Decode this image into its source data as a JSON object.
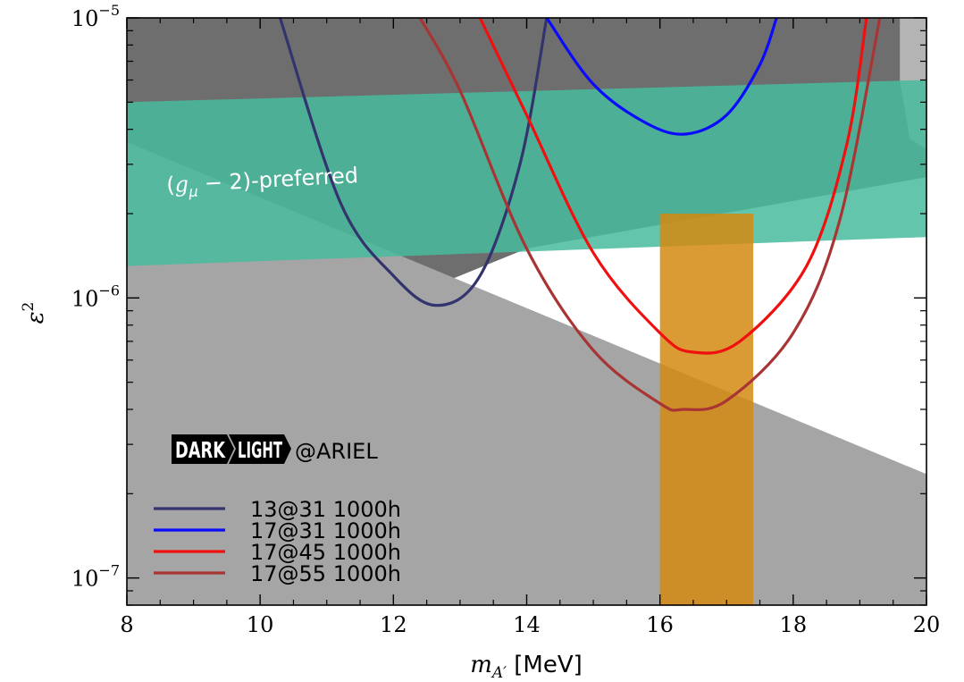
{
  "chart_data": {
    "type": "line",
    "xlabel": "m_{A'} [MeV]",
    "ylabel": "ε²",
    "xlim": [
      8,
      20
    ],
    "ylim": [
      8e-08,
      1e-05
    ],
    "yscale": "log",
    "x_ticks": [
      8,
      10,
      12,
      14,
      16,
      18,
      20
    ],
    "y_ticks": [
      {
        "value": 1e-07,
        "base": "10",
        "exp": "−7"
      },
      {
        "value": 1e-06,
        "base": "10",
        "exp": "−6"
      },
      {
        "value": 1e-05,
        "base": "10",
        "exp": "−5"
      }
    ],
    "regions": [
      {
        "name": "excluded-dark",
        "color": "#6e6e6e",
        "points": [
          [
            8,
            1e-05
          ],
          [
            19.6,
            1e-05
          ],
          [
            20,
            5e-06
          ],
          [
            20,
            2.7e-06
          ],
          [
            14,
            1.5e-06
          ],
          [
            12.4,
            1.05e-06
          ],
          [
            8,
            2.8e-06
          ]
        ]
      },
      {
        "name": "excluded-light",
        "color": "#a5a5a5",
        "points": [
          [
            8,
            3.6e-06
          ],
          [
            20,
            2.35e-07
          ],
          [
            20,
            8e-08
          ],
          [
            8,
            8e-08
          ]
        ]
      },
      {
        "name": "excluded-light-corner",
        "color": "#b4b4b4",
        "points": [
          [
            19.6,
            1e-05
          ],
          [
            20,
            1e-05
          ],
          [
            20,
            3.4e-06
          ],
          [
            19.75,
            3.7e-06
          ],
          [
            19.6,
            6e-06
          ]
        ]
      },
      {
        "name": "g-2-preferred",
        "color": "#48bc9d",
        "opacity": 0.85,
        "points": [
          [
            8,
            5e-06
          ],
          [
            20,
            6e-06
          ],
          [
            20,
            1.65e-06
          ],
          [
            8,
            1.3e-06
          ]
        ]
      },
      {
        "name": "x17-band",
        "color": "#d48a10",
        "opacity": 0.85,
        "points": [
          [
            16,
            2e-06
          ],
          [
            17.4,
            2e-06
          ],
          [
            17.4,
            8e-08
          ],
          [
            16,
            8e-08
          ]
        ]
      }
    ],
    "region_label": {
      "text_main": "g",
      "text_sub": "μ",
      "text_mid": " − 2)-preferred",
      "x": 8.6,
      "y": 2.38e-06,
      "rotation": -3
    },
    "series": [
      {
        "name": "13@31 1000h",
        "color": "#33346e",
        "x": [
          10.3,
          11.2,
          12.0,
          12.65,
          13.3,
          13.9,
          14.3
        ],
        "y": [
          1e-05,
          2.2e-06,
          1.2e-06,
          9.4e-07,
          1.2e-06,
          3e-06,
          1e-05
        ]
      },
      {
        "name": "17@31 1000h",
        "color": "#0a0aff",
        "x": [
          14.3,
          15.0,
          15.8,
          16.4,
          17.0,
          17.5,
          17.75
        ],
        "y": [
          1e-05,
          5.8e-06,
          4.2e-06,
          3.85e-06,
          4.5e-06,
          6.8e-06,
          1e-05
        ]
      },
      {
        "name": "17@45 1000h",
        "color": "#f01010",
        "x": [
          13.3,
          14.0,
          15.0,
          16.0,
          16.5,
          17.2,
          18.2,
          18.8,
          19.1
        ],
        "y": [
          1e-05,
          4.5e-06,
          1.45e-06,
          7.5e-07,
          6.4e-07,
          7e-07,
          1.3e-06,
          3.5e-06,
          1e-05
        ]
      },
      {
        "name": "17@55 1000h",
        "color": "#a83434",
        "x": [
          12.4,
          13.0,
          14.0,
          15.0,
          16.0,
          16.35,
          17.0,
          18.0,
          18.7,
          19.3
        ],
        "y": [
          1e-05,
          5.5e-06,
          1.5e-06,
          6.5e-07,
          4.2e-07,
          4e-07,
          4.3e-07,
          7.5e-07,
          1.9e-06,
          1e-05
        ]
      }
    ]
  },
  "logo": {
    "dark": "DARK",
    "light": "LIGHT",
    "suffix": "@ARIEL"
  }
}
